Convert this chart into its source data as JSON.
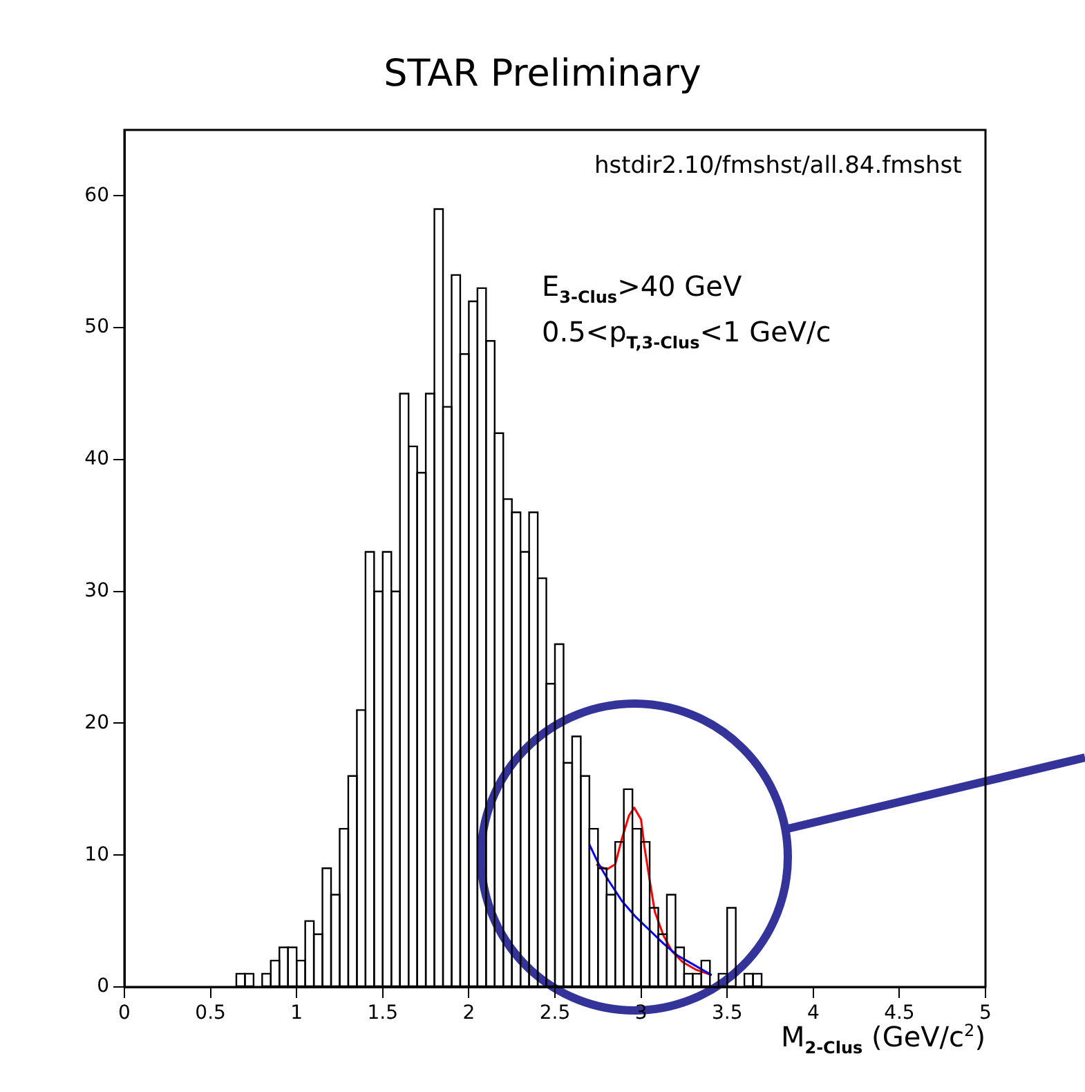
{
  "chart_data": {
    "type": "histogram",
    "title": "STAR Preliminary",
    "xlabel": "M$_{2-Clus}$ (GeV/c$^{2}$)",
    "annotations": [
      "hstdir2.10/fmshst/all.84.fmshst",
      "E$_{3-Clus}$>40 GeV",
      "0.5<p$_{T,3-Clus}$<1 GeV/c"
    ],
    "bins": [
      0.6,
      0.65,
      0.7,
      0.75,
      0.8,
      0.85,
      0.9,
      0.95,
      1.0,
      1.05,
      1.1,
      1.15,
      1.2,
      1.25,
      1.3,
      1.35,
      1.4,
      1.45,
      1.5,
      1.55,
      1.6,
      1.65,
      1.7,
      1.75,
      1.8,
      1.85,
      1.9,
      1.95,
      2.0,
      2.05,
      2.1,
      2.15,
      2.2,
      2.25,
      2.3,
      2.35,
      2.4,
      2.45,
      2.5,
      2.55,
      2.6,
      2.65,
      2.7,
      2.75,
      2.8,
      2.85,
      2.9,
      2.95,
      3.0,
      3.05,
      3.1,
      3.15,
      3.2,
      3.25,
      3.3,
      3.35,
      3.4,
      3.45,
      3.5,
      3.55,
      3.6,
      3.65,
      3.7
    ],
    "values": [
      0,
      1,
      1,
      0,
      1,
      2,
      3,
      3,
      2,
      5,
      4,
      9,
      7,
      12,
      16,
      21,
      33,
      30,
      33,
      30,
      45,
      41,
      39,
      45,
      59,
      44,
      54,
      48,
      52,
      53,
      49,
      42,
      37,
      36,
      33,
      36,
      31,
      23,
      26,
      17,
      19,
      16,
      12,
      9,
      7,
      11,
      15,
      12,
      11,
      6,
      4,
      7,
      3,
      1,
      1,
      2,
      0,
      1,
      6,
      0,
      1,
      1
    ],
    "color": "#000000",
    "series": [
      {
        "type": "line",
        "color": "#0000ff",
        "x": [
          2.7,
          2.755,
          2.81,
          2.89,
          2.97,
          3.05,
          3.13,
          3.21,
          3.29,
          3.37,
          3.41
        ],
        "values": [
          10.8,
          9.3,
          8.1,
          6.5,
          5.3,
          4.3,
          3.3,
          2.4,
          1.8,
          1.2,
          0.9
        ]
      },
      {
        "type": "line",
        "color": "#ff0000",
        "x": [
          2.74,
          2.8,
          2.85,
          2.89,
          2.93,
          2.96,
          3.0,
          3.02,
          3.05,
          3.08,
          3.13,
          3.18,
          3.24,
          3.32,
          3.41
        ],
        "values": [
          9.3,
          8.9,
          9.3,
          11.3,
          13.0,
          13.6,
          12.7,
          10.6,
          8.1,
          5.7,
          3.9,
          2.7,
          1.9,
          1.3,
          0.9
        ]
      }
    ],
    "marker": "none",
    "xlim": [
      0,
      5
    ],
    "xticks": [
      0,
      0.5,
      1,
      1.5,
      2,
      2.5,
      3,
      3.5,
      4,
      4.5,
      5
    ],
    "ylim": [
      0,
      65
    ],
    "yticks": [
      0,
      10,
      20,
      30,
      40,
      50,
      60
    ],
    "grid": false
  }
}
